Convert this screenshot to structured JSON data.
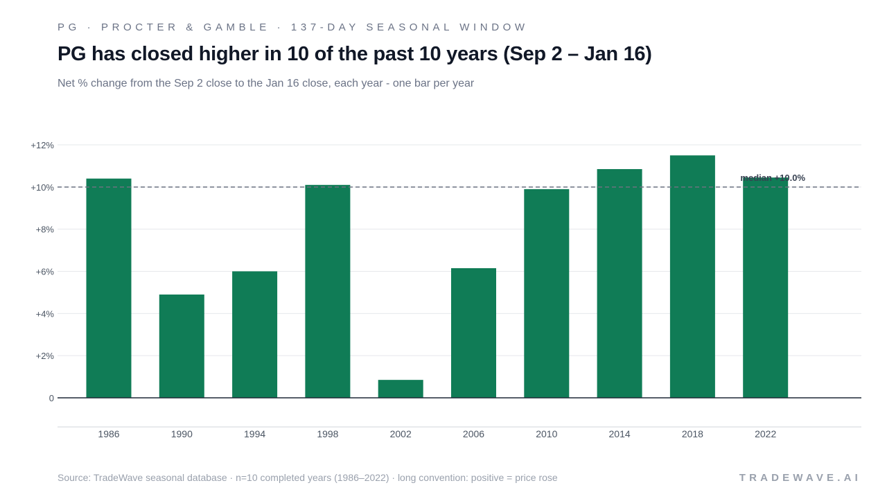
{
  "header": {
    "kicker": "PG · PROCTER & GAMBLE · 137-DAY SEASONAL WINDOW",
    "title": "PG has closed higher in 10 of the past 10 years (Sep 2 – Jan 16)",
    "subtitle": "Net % change from the Sep 2 close to the Jan 16 close, each year - one bar per year"
  },
  "footer": {
    "source": "Source: TradeWave seasonal database · n=10 completed years (1986–2022) · long convention: positive = price rose",
    "brand": "TRADEWAVE.AI"
  },
  "colors": {
    "bar": "#107c56",
    "grid": "#e6e8eb",
    "axis": "#1f2937",
    "median_line": "#6b7280",
    "tick_text": "#4b5563"
  },
  "chart_data": {
    "type": "bar",
    "categories": [
      "1986",
      "1990",
      "1994",
      "1998",
      "2002",
      "2006",
      "2010",
      "2014",
      "2018",
      "2022"
    ],
    "values": [
      10.4,
      4.9,
      6.0,
      10.1,
      0.85,
      6.15,
      9.9,
      10.85,
      11.5,
      10.45
    ],
    "ylim": [
      0,
      12
    ],
    "yticks": [
      0,
      2,
      4,
      6,
      8,
      10,
      12
    ],
    "ytick_labels": [
      "0",
      "+2%",
      "+4%",
      "+6%",
      "+8%",
      "+10%",
      "+12%"
    ],
    "median": 10.0,
    "median_label": "median +10.0%",
    "grid": true
  }
}
